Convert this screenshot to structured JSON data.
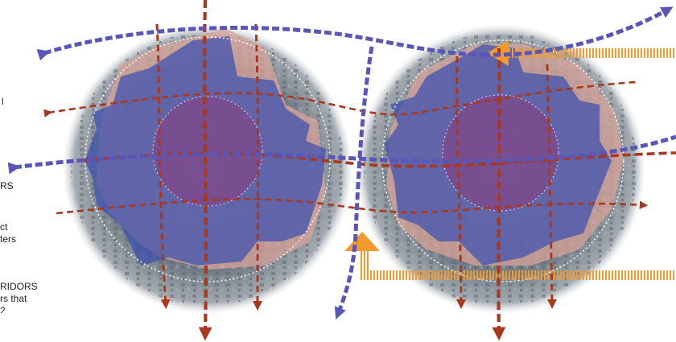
{
  "legend": {
    "line_1": "l",
    "line_2": "RS",
    "line_3": "ct",
    "line_4": "ters",
    "line_5": "RIDORS",
    "line_6": "rs that",
    "line_7": "2"
  },
  "colors": {
    "background": "#ffffff",
    "district_fill": "#3c4fb0",
    "core_fill": "#8a3d7a",
    "parcel_fill": "#d9a49a",
    "corridor_red": "#a8381e",
    "corridor_blue": "#5a55b8",
    "orange_arrow": "#f39a2e",
    "boundary_white": "#ffffff"
  },
  "icons": {
    "arrowhead_red": "triangle-arrowhead",
    "arrowhead_blue": "triangle-arrowhead",
    "arrowhead_orange": "solid-triangle"
  }
}
